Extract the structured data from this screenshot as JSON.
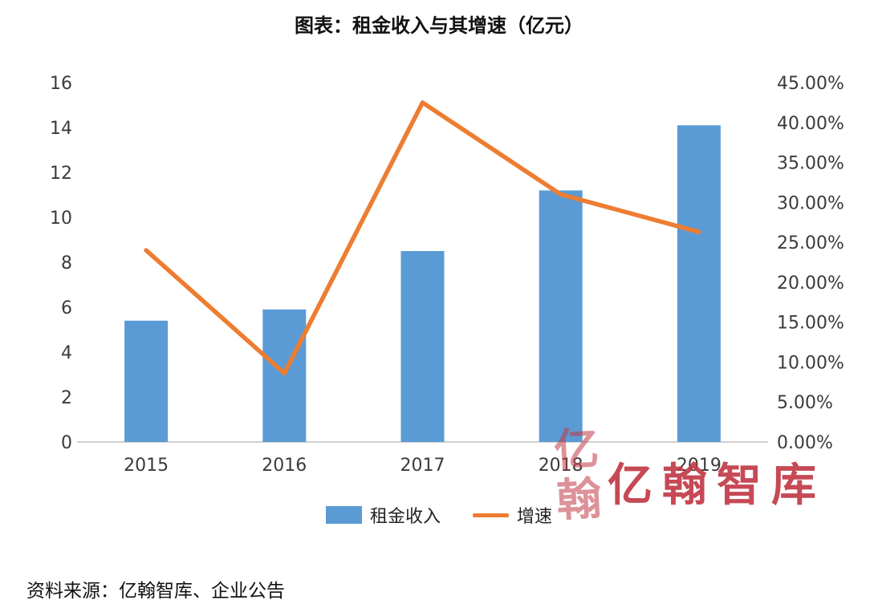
{
  "title": "图表：租金收入与其增速（亿元）",
  "source": "资料来源：亿翰智库、企业公告",
  "watermark": {
    "text": "亿翰智库",
    "seal_char_1": "亿",
    "seal_char_2": "翰"
  },
  "legend": {
    "bar_label": "租金收入",
    "line_label": "增速"
  },
  "colors": {
    "bar": "#5B9BD5",
    "line": "#ED7D31",
    "watermark": "#C23A47",
    "axis_line": "#BFBFBF",
    "tick_text": "#3b3b3b"
  },
  "chart_data": {
    "type": "bar",
    "subtype": "combo bar+line, dual axis",
    "title": "图表：租金收入与其增速（亿元）",
    "categories": [
      "2015",
      "2016",
      "2017",
      "2018",
      "2019"
    ],
    "series": [
      {
        "name": "租金收入",
        "type": "bar",
        "axis": "left",
        "unit": "亿元",
        "values": [
          5.4,
          5.9,
          8.5,
          11.2,
          14.1
        ]
      },
      {
        "name": "增速",
        "type": "line",
        "axis": "right",
        "unit": "%",
        "values": [
          24.0,
          8.6,
          42.5,
          31.0,
          26.3
        ]
      }
    ],
    "left_axis": {
      "min": 0,
      "max": 16,
      "step": 2
    },
    "right_axis": {
      "min": 0,
      "max": 45,
      "step": 5,
      "format": "0.00%"
    },
    "grid": false,
    "legend_position": "bottom"
  }
}
